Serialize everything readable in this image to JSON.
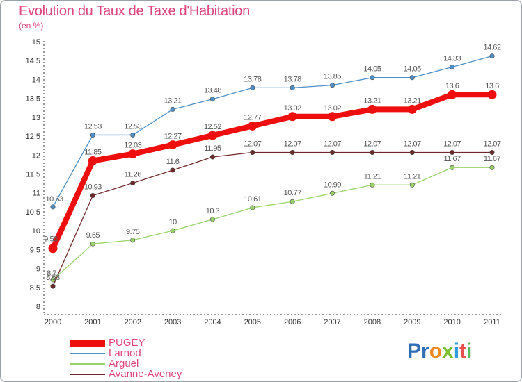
{
  "chart_data": {
    "type": "line",
    "title": "Evolution du Taux de Taxe d'Habitation",
    "subtitle": "(en %)",
    "xlabel": "",
    "ylabel": "",
    "categories": [
      "2000",
      "2001",
      "2002",
      "2003",
      "2004",
      "2005",
      "2006",
      "2007",
      "2008",
      "2009",
      "2010",
      "2011"
    ],
    "ylim": [
      8,
      15
    ],
    "yticks": [
      "8",
      "8.5",
      "9",
      "9.5",
      "10",
      "10.5",
      "11",
      "11.5",
      "12",
      "12.5",
      "13",
      "13.5",
      "14",
      "14.5",
      "15"
    ],
    "grid": false,
    "legend_position": "bottom-left",
    "series": [
      {
        "name": "Larnod",
        "color": "#4f90c8",
        "values": [
          10.63,
          12.53,
          12.53,
          13.21,
          13.48,
          13.78,
          13.78,
          13.85,
          14.05,
          14.05,
          14.33,
          14.62
        ],
        "labels": [
          "10.63",
          "12.53",
          "12.53",
          "13.21",
          "13.48",
          "13.78",
          "13.78",
          "13.85",
          "14.05",
          "14.05",
          "14.33",
          "14.62"
        ]
      },
      {
        "name": "Avanne-Aveney",
        "color": "#6e2a2a",
        "values": [
          8.53,
          10.93,
          11.26,
          11.6,
          11.95,
          12.07,
          12.07,
          12.07,
          12.07,
          12.07,
          12.07,
          12.07
        ],
        "labels": [
          "8.53",
          "10.93",
          "11.26",
          "11.6",
          "11.95",
          "12.07",
          "12.07",
          "12.07",
          "12.07",
          "12.07",
          "12.07",
          "12.07"
        ]
      },
      {
        "name": "Arguel",
        "color": "#9bd36b",
        "values": [
          8.7,
          9.65,
          9.75,
          10,
          10.3,
          10.61,
          10.77,
          10.99,
          11.21,
          11.21,
          11.67,
          11.67
        ],
        "labels": [
          "8.7",
          "9.65",
          "9.75",
          "10",
          "10.3",
          "10.61",
          "10.77",
          "10.99",
          "11.21",
          "11.21",
          "11.67",
          "11.67"
        ]
      },
      {
        "name": "PUGEY",
        "color": "#ee0e0e",
        "values": [
          9.53,
          11.85,
          12.03,
          12.27,
          12.52,
          12.77,
          13.02,
          13.02,
          13.21,
          13.21,
          13.6,
          13.6
        ],
        "labels": [
          "9.53",
          "11.85",
          "12.03",
          "12.27",
          "12.52",
          "12.77",
          "13.02",
          "13.02",
          "13.21",
          "13.21",
          "13.6",
          "13.6"
        ]
      }
    ],
    "legend": [
      "PUGEY",
      "Larnod",
      "Arguel",
      "Avanne-Aveney"
    ]
  },
  "logo": {
    "l1": "Pr",
    "l2": "o",
    "l3": "x",
    "l4": "i",
    "l5": "t",
    "l6": "i"
  }
}
